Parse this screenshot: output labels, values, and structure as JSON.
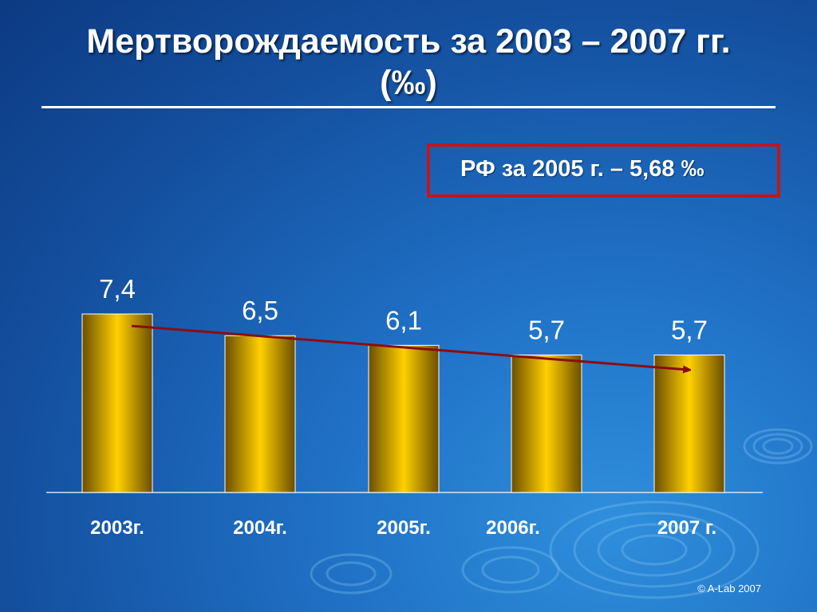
{
  "slide": {
    "title_line1": "Мертворождаемость за 2003 – 2007 гг.",
    "title_line2": "(‰)",
    "callout": "РФ за 2005 г. – 5,68 ‰",
    "copyright": "© A-Lab 2007"
  },
  "colors": {
    "bar_center": "#ffd000",
    "bar_edge": "#6b4e00",
    "trend": "#8b0d0d",
    "callout_border": "#c0161c"
  },
  "chart_data": {
    "type": "bar",
    "categories": [
      "2003г.",
      "2004г.",
      "2005г.",
      "2006г.",
      "2007 г."
    ],
    "values": [
      7.4,
      6.5,
      6.1,
      5.7,
      5.7
    ],
    "value_labels": [
      "7,4",
      "6,5",
      "6,1",
      "5,7",
      "5,7"
    ],
    "ylim": [
      0,
      7.4
    ],
    "grid": false,
    "trend_arrow": true
  }
}
